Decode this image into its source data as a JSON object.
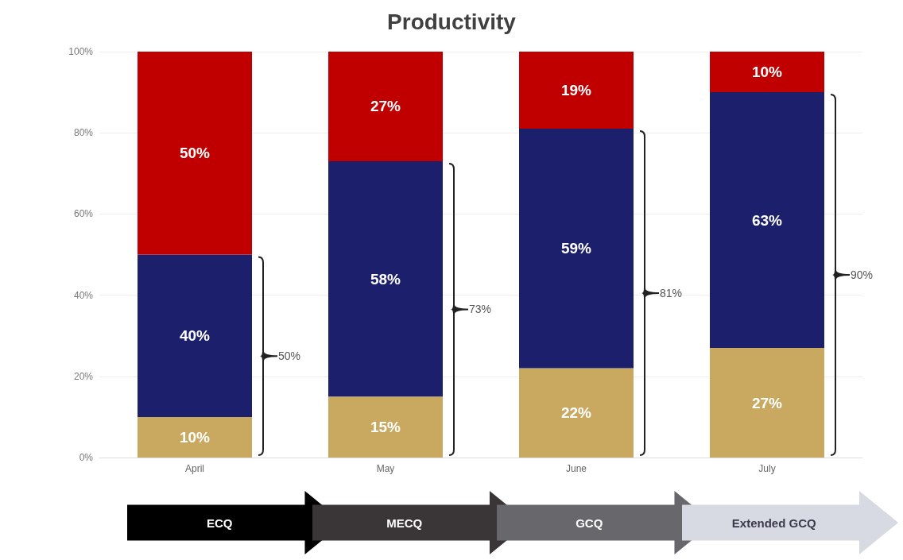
{
  "chart_data": {
    "type": "bar",
    "title": "Productivity",
    "stacked": true,
    "grid": "y",
    "categories": [
      "April",
      "May",
      "June",
      "July"
    ],
    "series": [
      {
        "color": "#c9a860",
        "values": [
          10,
          15,
          22,
          27
        ],
        "value_labels": [
          "10%",
          "15%",
          "22%",
          "27%"
        ]
      },
      {
        "color": "#1c1f6b",
        "values": [
          40,
          58,
          59,
          63
        ],
        "value_labels": [
          "40%",
          "58%",
          "59%",
          "63%"
        ]
      },
      {
        "color": "#c00000",
        "values": [
          50,
          27,
          19,
          10
        ],
        "value_labels": [
          "50%",
          "27%",
          "19%",
          "10%"
        ]
      }
    ],
    "ylim": [
      0,
      100
    ],
    "yticks": [
      {
        "value": 0,
        "label": "0%"
      },
      {
        "value": 20,
        "label": "20%"
      },
      {
        "value": 40,
        "label": "40%"
      },
      {
        "value": 60,
        "label": "60%"
      },
      {
        "value": 80,
        "label": "80%"
      },
      {
        "value": 100,
        "label": "100%"
      }
    ],
    "annotations": [
      "50%",
      "73%",
      "81%",
      "90%",
      "ECQ",
      "MECQ",
      "GCQ",
      "Extended GCQ"
    ]
  }
}
